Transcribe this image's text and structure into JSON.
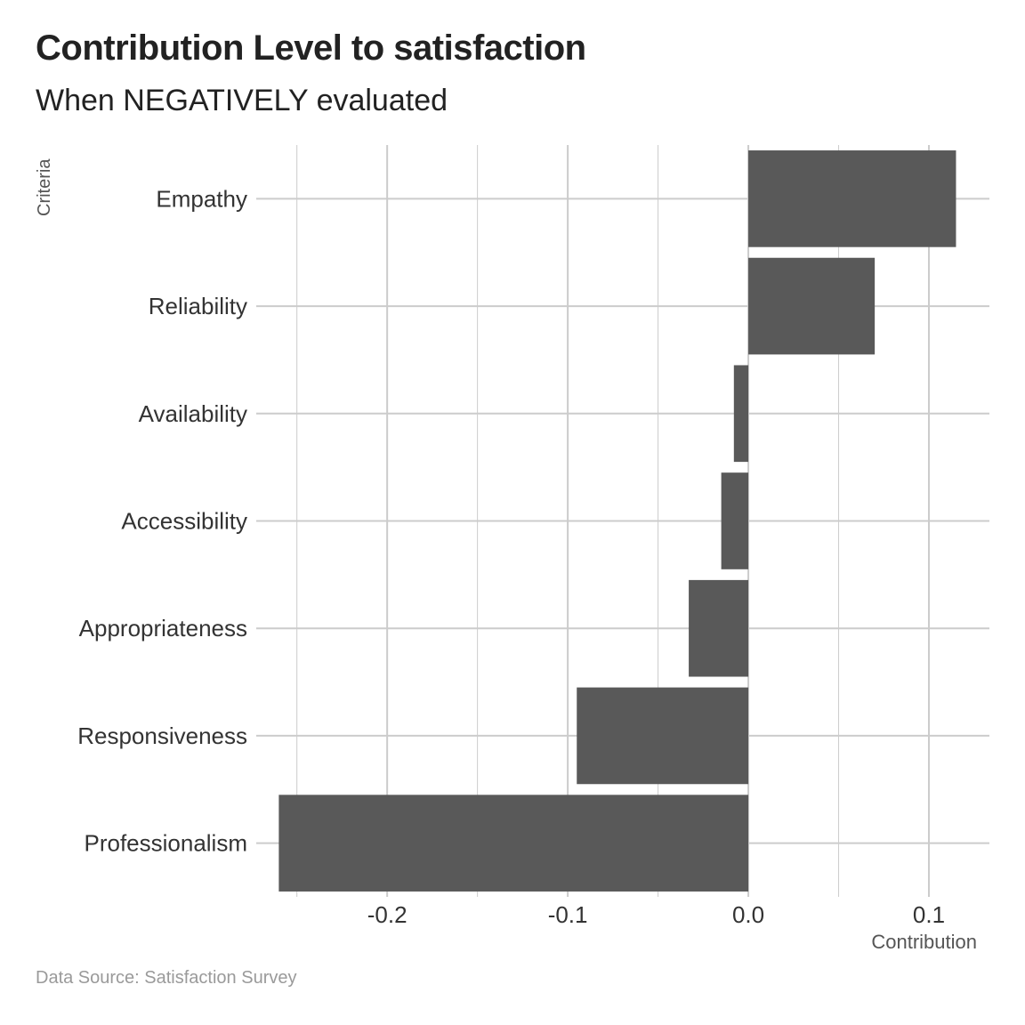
{
  "title": "Contribution Level to satisfaction",
  "subtitle": "When NEGATIVELY evaluated",
  "caption": "Data Source: Satisfaction Survey",
  "chart_data": {
    "type": "bar",
    "orientation": "horizontal",
    "title": "Contribution Level to satisfaction",
    "subtitle": "When NEGATIVELY evaluated",
    "xlabel": "Contribution",
    "ylabel": "Criteria",
    "categories": [
      "Empathy",
      "Reliability",
      "Availability",
      "Accessibility",
      "Appropriateness",
      "Responsiveness",
      "Professionalism"
    ],
    "values": [
      0.115,
      0.07,
      -0.008,
      -0.015,
      -0.033,
      -0.095,
      -0.26
    ],
    "xlim": [
      -0.2725,
      0.1335
    ],
    "xticks": [
      -0.2,
      -0.1,
      0.0,
      0.1
    ],
    "xtick_labels": [
      "-0.2",
      "-0.1",
      "0.0",
      "0.1"
    ],
    "grid": true,
    "legend": "none",
    "bar_color": "#595959",
    "grid_color": "#cccccc"
  }
}
